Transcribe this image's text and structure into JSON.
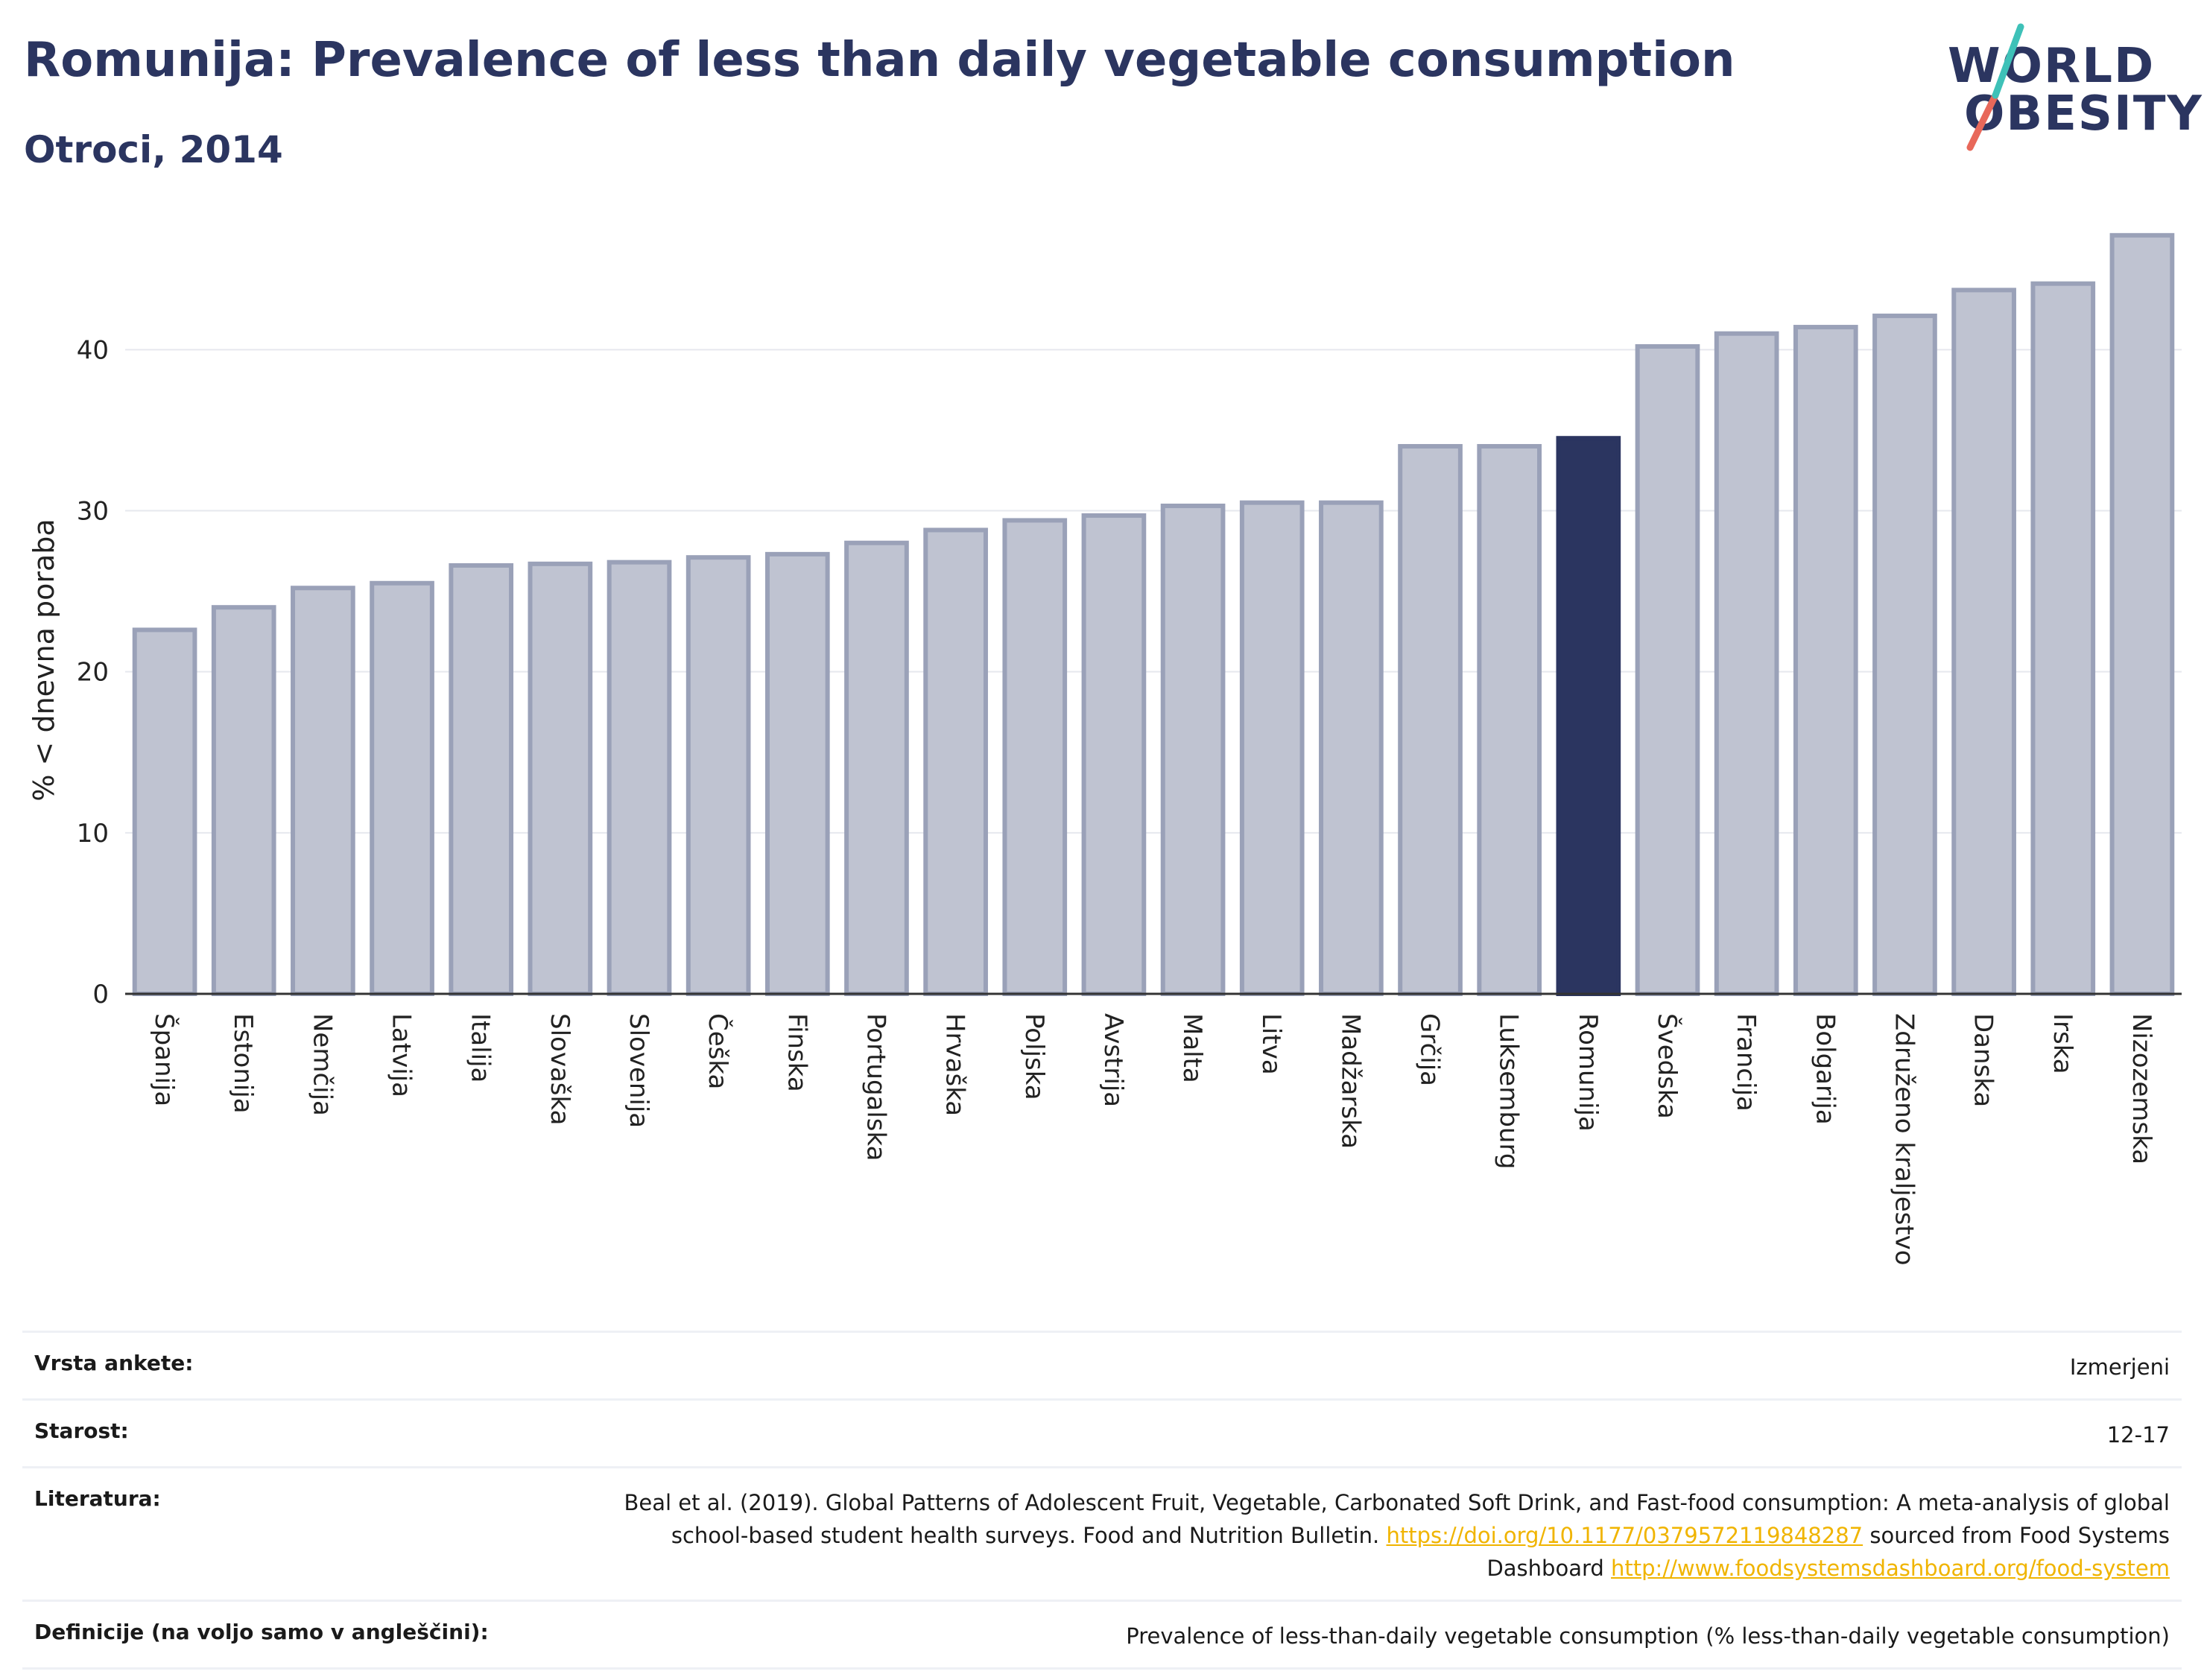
{
  "header": {
    "title": "Romunija: Prevalence of less than daily vegetable consumption",
    "subtitle": "Otroci, 2014"
  },
  "logo": {
    "line1": "WORLD",
    "line2": "OBESITY",
    "teal": "#3ec1b8",
    "coral": "#e8685a",
    "navy": "#2b3560"
  },
  "colors": {
    "bar": "#bfc3d1",
    "bar_edge": "#9aa1b8",
    "highlight": "#2b3560",
    "grid": "#e6e8ee",
    "axis": "#333333"
  },
  "chart_data": {
    "type": "bar",
    "ylabel": "% < dnevna poraba",
    "ylim": [
      0,
      47
    ],
    "yticks": [
      0,
      10,
      20,
      30,
      40
    ],
    "highlight": "Romunija",
    "categories": [
      "Španija",
      "Estonija",
      "Nemčija",
      "Latvija",
      "Italija",
      "Slovaška",
      "Slovenija",
      "Češka",
      "Finska",
      "Portugalska",
      "Hrvaška",
      "Poljska",
      "Avstrija",
      "Malta",
      "Litva",
      "Madžarska",
      "Grčija",
      "Luksemburg",
      "Romunija",
      "Švedska",
      "Francija",
      "Bolgarija",
      "Združeno kraljestvo",
      "Danska",
      "Irska",
      "Nizozemska"
    ],
    "values": [
      22.6,
      24.0,
      25.2,
      25.5,
      26.6,
      26.7,
      26.8,
      27.1,
      27.3,
      28.0,
      28.8,
      29.4,
      29.7,
      30.3,
      30.5,
      30.5,
      34.0,
      34.0,
      34.5,
      40.2,
      41.0,
      41.4,
      42.1,
      43.7,
      44.1,
      47.1
    ]
  },
  "meta": {
    "survey_label": "Vrsta ankete:",
    "survey_value": "Izmerjeni",
    "age_label": "Starost:",
    "age_value": "12-17",
    "ref_label": "Literatura:",
    "ref_text1": "Beal et al. (2019). Global Patterns of Adolescent Fruit, Vegetable, Carbonated Soft Drink, and Fast-food consumption: A meta-analysis of global school-based student health surveys. Food and Nutrition Bulletin.",
    "ref_link1": "https://doi.org/10.1177/0379572119848287",
    "ref_text2": "sourced from Food Systems Dashboard",
    "ref_link2": "http://www.foodsystemsdashboard.org/food-system",
    "def_label": "Definicije (na voljo samo v angleščini):",
    "def_value": "Prevalence of less-than-daily vegetable consumption (% less-than-daily vegetable consumption)"
  }
}
